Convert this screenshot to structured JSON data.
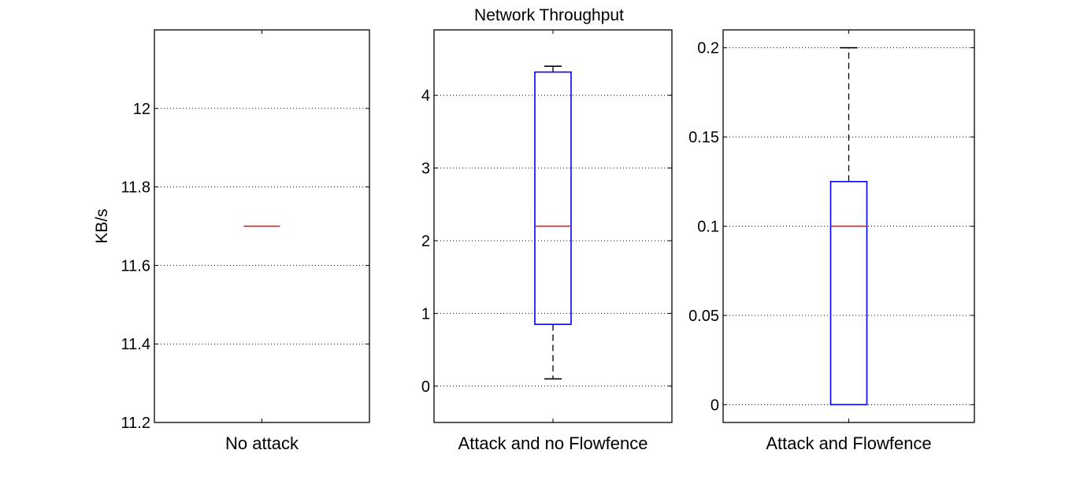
{
  "figure": {
    "title": "Network Throughput"
  },
  "chart_data": [
    {
      "type": "box",
      "title": "",
      "xlabel": "",
      "ylabel": "KB/s",
      "categories": [
        "No attack"
      ],
      "ylim": [
        11.2,
        12.2
      ],
      "yticks": [
        11.2,
        11.4,
        11.6,
        11.8,
        12.0
      ],
      "ytick_labels": [
        "11.2",
        "11.4",
        "11.6",
        "11.8",
        "12"
      ],
      "grid": "y-dotted",
      "boxes": [
        {
          "min": 11.7,
          "q1": 11.7,
          "median": 11.7,
          "q3": 11.7,
          "max": 11.7
        }
      ]
    },
    {
      "type": "box",
      "title": "Network Throughput",
      "xlabel": "",
      "ylabel": "",
      "categories": [
        "Attack and no Flowfence"
      ],
      "ylim": [
        -0.5,
        4.9
      ],
      "yticks": [
        0,
        1,
        2,
        3,
        4
      ],
      "ytick_labels": [
        "0",
        "1",
        "2",
        "3",
        "4"
      ],
      "grid": "y-dotted",
      "boxes": [
        {
          "min": 0.1,
          "q1": 0.85,
          "median": 2.2,
          "q3": 4.32,
          "max": 4.4
        }
      ]
    },
    {
      "type": "box",
      "title": "",
      "xlabel": "",
      "ylabel": "",
      "categories": [
        "Attack and Flowfence"
      ],
      "ylim": [
        -0.01,
        0.21
      ],
      "yticks": [
        0,
        0.05,
        0.1,
        0.15,
        0.2
      ],
      "ytick_labels": [
        "0",
        "0.05",
        "0.1",
        "0.15",
        "0.2"
      ],
      "grid": "y-dotted",
      "boxes": [
        {
          "min": 0,
          "q1": 0,
          "median": 0.1,
          "q3": 0.125,
          "max": 0.2
        }
      ]
    }
  ],
  "colors": {
    "box": "#0000ff",
    "median": "#ff0000",
    "whisker": "#000000",
    "grid": "#000000"
  }
}
